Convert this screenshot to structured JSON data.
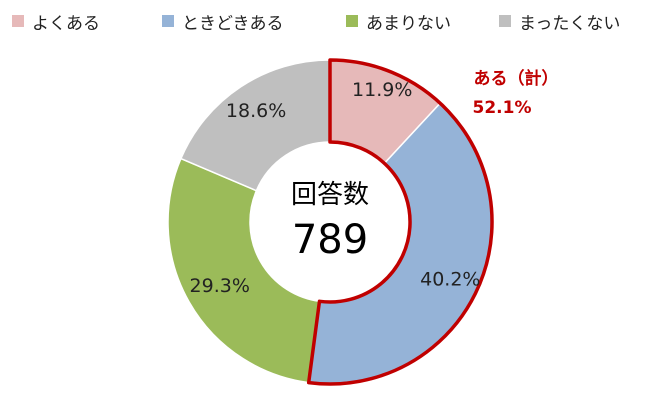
{
  "chart_data": {
    "type": "pie",
    "variant": "donut",
    "title": "",
    "legend_position": "top",
    "categories": [
      "よくある",
      "ときどきある",
      "あまりない",
      "まったくない"
    ],
    "values": [
      11.9,
      40.2,
      29.3,
      18.6
    ],
    "labels": [
      "11.9%",
      "40.2%",
      "29.3%",
      "18.6%"
    ],
    "colors": [
      "#e6b9b9",
      "#95b3d7",
      "#9bbb59",
      "#bfbfbf"
    ],
    "center_label": "回答数",
    "center_value": "789",
    "callout": {
      "label": "ある（計）",
      "value": "52.1%",
      "color": "#c00000",
      "covers": [
        "よくある",
        "ときどきある"
      ]
    }
  }
}
